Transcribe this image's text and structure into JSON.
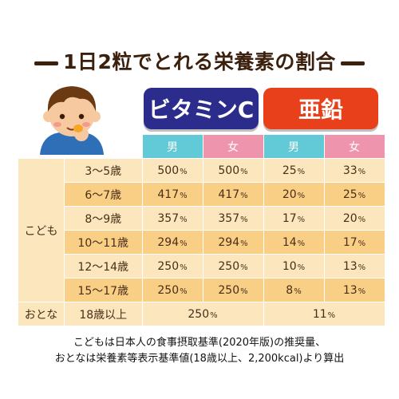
{
  "title": "1日2粒でとれる栄養素の割合",
  "headers": {
    "vitamin_c": "ビタミンC",
    "zinc": "亜鉛"
  },
  "gender": {
    "male": "男",
    "female": "女"
  },
  "group_kids": "こども",
  "group_adult": "おとな",
  "rows": [
    {
      "age": "3～5歳",
      "vc_m": "500",
      "vc_f": "500",
      "zn_m": "25",
      "zn_f": "33"
    },
    {
      "age": "6～7歳",
      "vc_m": "417",
      "vc_f": "417",
      "zn_m": "20",
      "zn_f": "25"
    },
    {
      "age": "8～9歳",
      "vc_m": "357",
      "vc_f": "357",
      "zn_m": "17",
      "zn_f": "20"
    },
    {
      "age": "10～11歳",
      "vc_m": "294",
      "vc_f": "294",
      "zn_m": "14",
      "zn_f": "17"
    },
    {
      "age": "12～14歳",
      "vc_m": "250",
      "vc_f": "250",
      "zn_m": "10",
      "zn_f": "13"
    },
    {
      "age": "15～17歳",
      "vc_m": "250",
      "vc_f": "250",
      "zn_m": "8",
      "zn_f": "13"
    }
  ],
  "adult_row": {
    "age": "18歳以上",
    "vc": "250",
    "zn": "11"
  },
  "pct_symbol": "%",
  "footnote_1": "こどもは日本人の食事摂取基準(2020年版)の推奨量、",
  "footnote_2": "おとなは栄養素等表示基準値(18歳以上、2,200kcal)より算出",
  "colors": {
    "vitamin_c_header": "#2b2c8c",
    "zinc_header": "#e7401b",
    "male": "#62c9d6",
    "female": "#ef94ad",
    "row_light": "#fbe6bd",
    "row_dark": "#f9cf86"
  }
}
